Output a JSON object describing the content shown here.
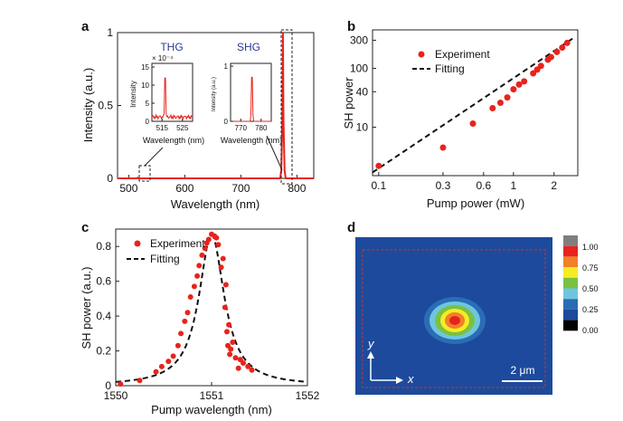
{
  "chart_data": [
    {
      "panel": "a",
      "type": "line",
      "xlabel": "Wavelength (nm)",
      "ylabel": "Intensity (a.u.)",
      "xlim": [
        480,
        830
      ],
      "ylim": [
        0,
        1
      ],
      "xticks": [
        "500",
        "600",
        "700",
        "800"
      ],
      "yticks": [
        "0",
        "0.5",
        "1"
      ],
      "spectrum_x": [
        480,
        515,
        516,
        517,
        770,
        772,
        774,
        775,
        776,
        778,
        780,
        830
      ],
      "spectrum_y": [
        0,
        0,
        0.004,
        0,
        0,
        0.05,
        0.4,
        1.0,
        0.4,
        0.05,
        0,
        0
      ],
      "insets": [
        {
          "title": "THG",
          "ylabel": "Intensity",
          "xlabel": "Wavelength (nm)",
          "exponent": "× 10⁻⁴",
          "xticks": [
            "515",
            "525"
          ],
          "yticks": [
            "0",
            "5",
            "10",
            "15"
          ],
          "xlim": [
            510,
            530
          ],
          "ylim": [
            0,
            16
          ],
          "peak_x": 516.5,
          "peak_y": 15,
          "baseline": 1.2
        },
        {
          "title": "SHG",
          "ylabel": "Intensity (a.u.)",
          "xlabel": "Wavelength (nm)",
          "xticks": [
            "770",
            "780"
          ],
          "yticks": [
            "0",
            "1"
          ],
          "xlim": [
            765,
            785
          ],
          "ylim": [
            0,
            1.05
          ],
          "peak_x": 775.5,
          "peak_y": 1.0,
          "baseline": 0
        }
      ]
    },
    {
      "panel": "b",
      "type": "scatter",
      "scale": "log-log",
      "xlabel": "Pump power (mW)",
      "ylabel": "SH power",
      "xlim": [
        0.09,
        3
      ],
      "ylim": [
        1.5,
        450
      ],
      "xticks": [
        "0.1",
        "0.3",
        "0.6",
        "1",
        "2"
      ],
      "yticks": [
        "10",
        "40",
        "100",
        "300"
      ],
      "legend": [
        "Experiment",
        "Fitting"
      ],
      "legend_position": "top-left",
      "x": [
        0.1,
        0.3,
        0.5,
        0.7,
        0.8,
        0.9,
        1.0,
        1.1,
        1.2,
        1.4,
        1.5,
        1.6,
        1.8,
        1.9,
        2.1,
        2.3,
        2.5
      ],
      "y": [
        2.2,
        4.5,
        11.5,
        21,
        26,
        32,
        44,
        53,
        60,
        82,
        95,
        110,
        140,
        155,
        190,
        225,
        270
      ],
      "fit": {
        "x": [
          0.09,
          2.8
        ],
        "y": [
          1.7,
          330
        ]
      }
    },
    {
      "panel": "c",
      "type": "scatter",
      "xlabel": "Pump wavelength (nm)",
      "ylabel": "SH power (a.u.)",
      "xlim": [
        1550,
        1552
      ],
      "ylim": [
        0,
        0.9
      ],
      "xticks": [
        "1550",
        "1551",
        "1552"
      ],
      "yticks": [
        "0",
        "0.2",
        "0.4",
        "0.6",
        "0.8"
      ],
      "legend": [
        "Experiment",
        "Fitting"
      ],
      "legend_position": "top-left",
      "x": [
        1550.05,
        1550.25,
        1550.42,
        1550.48,
        1550.55,
        1550.6,
        1550.65,
        1550.68,
        1550.72,
        1550.75,
        1550.78,
        1550.82,
        1550.85,
        1550.87,
        1550.9,
        1550.93,
        1550.95,
        1550.97,
        1551.0,
        1551.03,
        1551.05,
        1551.07,
        1551.1,
        1551.12,
        1551.14,
        1551.15,
        1551.16,
        1551.17,
        1551.18,
        1551.19,
        1551.2,
        1551.22,
        1551.25,
        1551.28,
        1551.3,
        1551.33,
        1551.38,
        1551.42
      ],
      "y": [
        0.01,
        0.03,
        0.08,
        0.11,
        0.14,
        0.17,
        0.23,
        0.3,
        0.37,
        0.42,
        0.51,
        0.57,
        0.63,
        0.69,
        0.75,
        0.79,
        0.82,
        0.84,
        0.87,
        0.86,
        0.85,
        0.81,
        0.68,
        0.73,
        0.45,
        0.58,
        0.31,
        0.23,
        0.35,
        0.18,
        0.21,
        0.25,
        0.16,
        0.1,
        0.15,
        0.13,
        0.11,
        0.09
      ],
      "fit_center": 1551.0,
      "fit_peak": 0.87,
      "fit_halfwidth": 0.16
    },
    {
      "panel": "d",
      "type": "heatmap",
      "colorbar_ticks": [
        "1.00",
        "0.75",
        "0.50",
        "0.25",
        "0.00"
      ],
      "colors": [
        "#7f7f7f",
        "#e8231d",
        "#f0802a",
        "#f5ec24",
        "#7ac143",
        "#6dc6df",
        "#2a6db5",
        "#1d4a9c",
        "#000000"
      ],
      "axis_y_label": "y",
      "axis_x_label": "x",
      "scale_bar_label": "2 μm"
    }
  ],
  "panel_labels": {
    "a": "a",
    "b": "b",
    "c": "c",
    "d": "d"
  }
}
